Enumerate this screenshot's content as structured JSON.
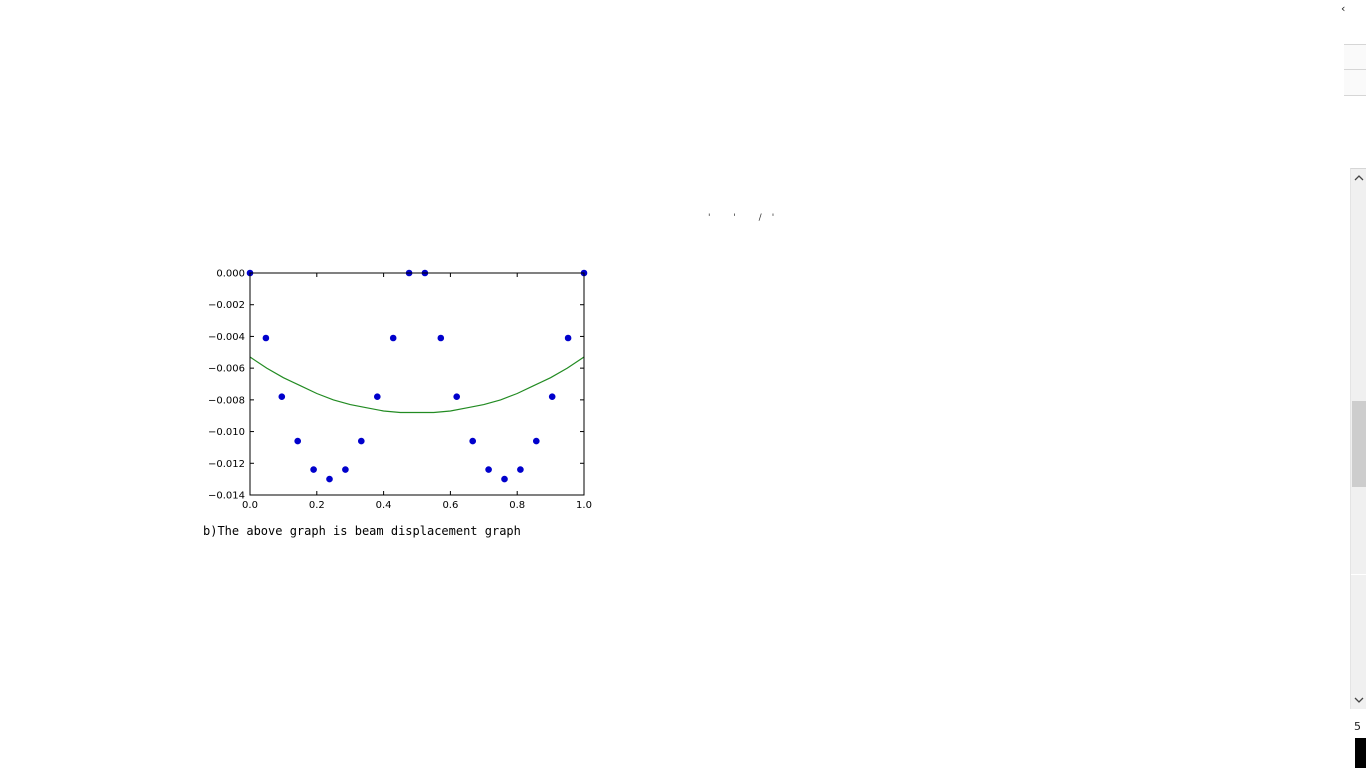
{
  "window": {
    "corner_glyph": "‹",
    "artifact_text": "' ' /'",
    "bottom_right_number": "5"
  },
  "icons": {
    "scroll_up": "chevron-up-icon",
    "scroll_down": "chevron-down-icon"
  },
  "chart_data": {
    "type": "scatter",
    "title": "",
    "xlabel": "",
    "ylabel": "",
    "xlim": [
      0.0,
      1.0
    ],
    "ylim": [
      -0.014,
      0.0
    ],
    "x_ticks": [
      "0.0",
      "0.2",
      "0.4",
      "0.6",
      "0.8",
      "1.0"
    ],
    "y_ticks": [
      "0.000",
      "−0.002",
      "−0.004",
      "−0.006",
      "−0.008",
      "−0.010",
      "−0.012",
      "−0.014"
    ],
    "grid": false,
    "series": [
      {
        "kind": "scatter",
        "color": "#0000cc",
        "x": [
          0.0,
          0.0476,
          0.0952,
          0.1429,
          0.1905,
          0.2381,
          0.2857,
          0.3333,
          0.381,
          0.4286,
          0.4762,
          0.5238,
          0.5714,
          0.619,
          0.6667,
          0.7143,
          0.7619,
          0.8095,
          0.8571,
          0.9048,
          0.9524,
          1.0
        ],
        "y": [
          0.0,
          -0.0041,
          -0.0078,
          -0.0106,
          -0.0124,
          -0.013,
          -0.0124,
          -0.0106,
          -0.0078,
          -0.0041,
          0.0,
          0.0,
          -0.0041,
          -0.0078,
          -0.0106,
          -0.0124,
          -0.013,
          -0.0124,
          -0.0106,
          -0.0078,
          -0.0041,
          0.0
        ]
      },
      {
        "kind": "line",
        "color": "#228b22",
        "x": [
          0.0,
          0.05,
          0.1,
          0.15,
          0.2,
          0.25,
          0.3,
          0.35,
          0.4,
          0.45,
          0.5,
          0.55,
          0.6,
          0.65,
          0.7,
          0.75,
          0.8,
          0.85,
          0.9,
          0.95,
          1.0
        ],
        "y": [
          -0.0053,
          -0.006,
          -0.0066,
          -0.0071,
          -0.0076,
          -0.008,
          -0.0083,
          -0.0085,
          -0.0087,
          -0.0088,
          -0.0088,
          -0.0088,
          -0.0087,
          -0.0085,
          -0.0083,
          -0.008,
          -0.0076,
          -0.0071,
          -0.0066,
          -0.006,
          -0.0053
        ]
      }
    ]
  },
  "caption": "b)The above graph is beam displacement graph"
}
